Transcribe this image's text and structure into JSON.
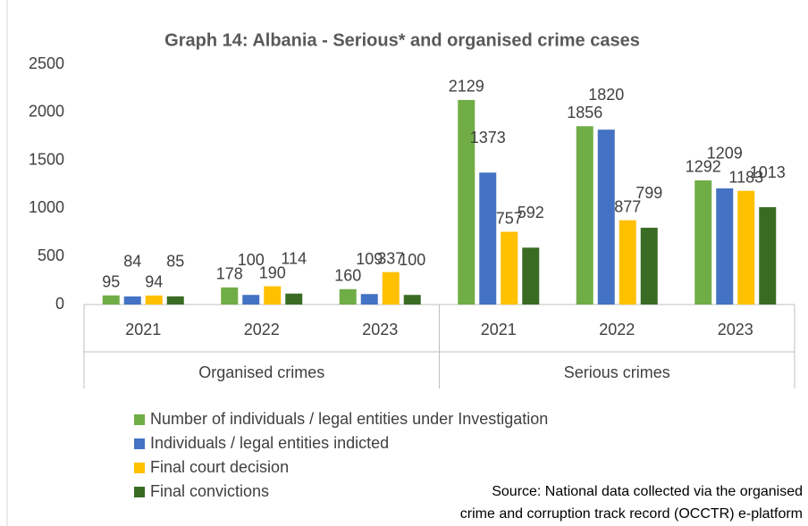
{
  "chart_data": {
    "type": "bar",
    "title": "Graph 14: Albania - Serious* and organised crime cases",
    "groups": [
      {
        "name": "Organised crimes",
        "categories": [
          "2021",
          "2022",
          "2023"
        ]
      },
      {
        "name": "Serious crimes",
        "categories": [
          "2021",
          "2022",
          "2023"
        ]
      }
    ],
    "series": [
      {
        "name": "Number of individuals / legal entities under Investigation",
        "color": "#70ad47",
        "values": [
          95,
          178,
          160,
          2129,
          1856,
          1292
        ]
      },
      {
        "name": "Individuals / legal entities indicted",
        "color": "#4472c4",
        "values": [
          84,
          100,
          109,
          1373,
          1820,
          1209
        ]
      },
      {
        "name": "Final court decision",
        "color": "#ffc000",
        "values": [
          94,
          190,
          337,
          757,
          877,
          1183
        ]
      },
      {
        "name": "Final convictions",
        "color": "#3a6b24",
        "values": [
          85,
          114,
          100,
          592,
          799,
          1013
        ]
      }
    ],
    "ylim": [
      0,
      2500
    ],
    "yticks": [
      0,
      500,
      1000,
      1500,
      2000,
      2500
    ],
    "grid": false,
    "data_labels": true,
    "legend": "bottom-left",
    "source": [
      "Source: National data collected via the organised",
      "crime and corruption track record (OCCTR) e-platform"
    ]
  }
}
